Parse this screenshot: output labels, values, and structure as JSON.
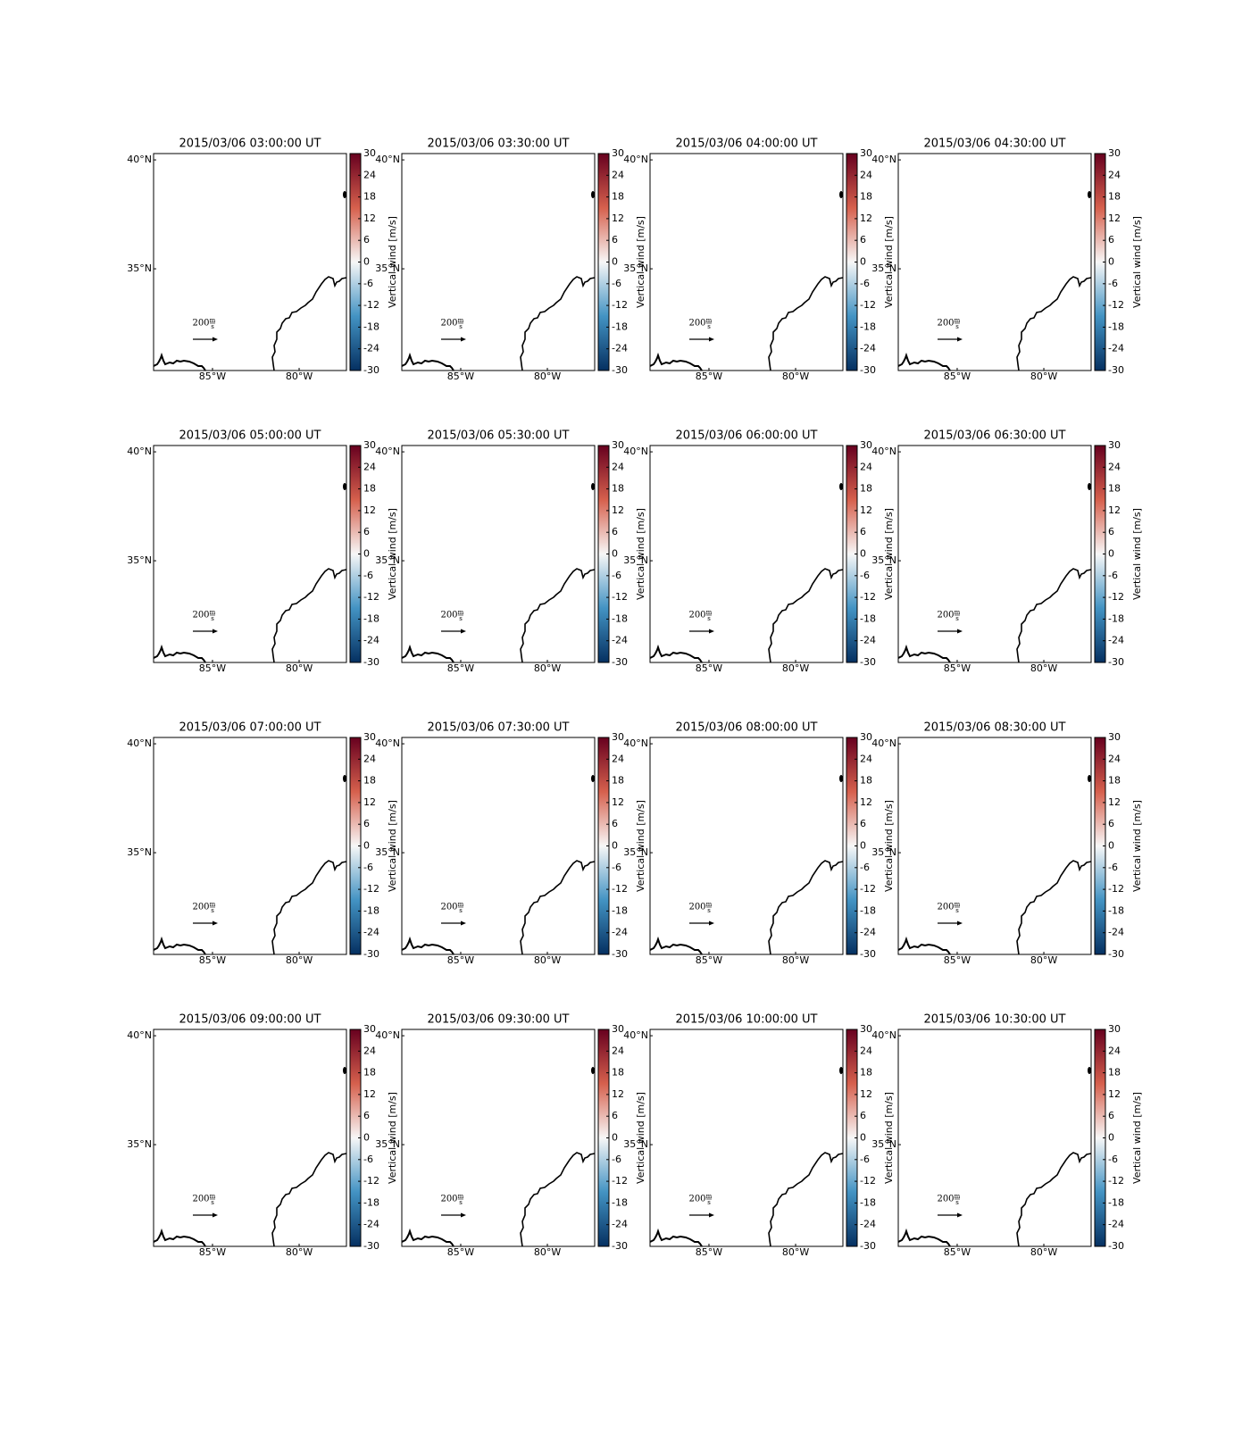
{
  "chart_data": [
    {
      "type": "map",
      "title": "2015/03/06 03:00:00 UT",
      "xlim": [
        -88.4,
        -77.27
      ],
      "ylim": [
        30.33,
        40.29
      ],
      "xticks": [
        {
          "value": -85,
          "label": "85°W"
        },
        {
          "value": -80,
          "label": "80°W"
        }
      ],
      "yticks": [
        {
          "value": 40,
          "label": "40°N"
        },
        {
          "value": 35,
          "label": "35°N"
        }
      ],
      "colorbar": {
        "label": "Vertical wind [m/s]",
        "lim": [
          -30,
          30
        ],
        "ticks": [
          -30,
          -24,
          -18,
          -12,
          -6,
          0,
          6,
          12,
          18,
          24,
          30
        ],
        "colors": [
          "#053061",
          "#4393c3",
          "#f7f7f7",
          "#d6604d",
          "#67001f"
        ]
      },
      "quiver_key": {
        "value": 200,
        "units": [
          "m",
          "s"
        ]
      }
    },
    {
      "type": "map",
      "title": "2015/03/06 03:30:00 UT",
      "xlim": [
        -88.4,
        -77.27
      ],
      "ylim": [
        30.33,
        40.29
      ],
      "xticks": [
        {
          "value": -85,
          "label": "85°W"
        },
        {
          "value": -80,
          "label": "80°W"
        }
      ],
      "yticks": [
        {
          "value": 40,
          "label": "40°N"
        },
        {
          "value": 35,
          "label": "35°N"
        }
      ],
      "colorbar": {
        "label": "Vertical wind [m/s]",
        "lim": [
          -30,
          30
        ],
        "ticks": [
          -30,
          -24,
          -18,
          -12,
          -6,
          0,
          6,
          12,
          18,
          24,
          30
        ],
        "colors": [
          "#053061",
          "#4393c3",
          "#f7f7f7",
          "#d6604d",
          "#67001f"
        ]
      },
      "quiver_key": {
        "value": 200,
        "units": [
          "m",
          "s"
        ]
      }
    },
    {
      "type": "map",
      "title": "2015/03/06 04:00:00 UT",
      "xlim": [
        -88.4,
        -77.27
      ],
      "ylim": [
        30.33,
        40.29
      ],
      "xticks": [
        {
          "value": -85,
          "label": "85°W"
        },
        {
          "value": -80,
          "label": "80°W"
        }
      ],
      "yticks": [
        {
          "value": 40,
          "label": "40°N"
        },
        {
          "value": 35,
          "label": "35°N"
        }
      ],
      "colorbar": {
        "label": "Vertical wind [m/s]",
        "lim": [
          -30,
          30
        ],
        "ticks": [
          -30,
          -24,
          -18,
          -12,
          -6,
          0,
          6,
          12,
          18,
          24,
          30
        ],
        "colors": [
          "#053061",
          "#4393c3",
          "#f7f7f7",
          "#d6604d",
          "#67001f"
        ]
      },
      "quiver_key": {
        "value": 200,
        "units": [
          "m",
          "s"
        ]
      }
    },
    {
      "type": "map",
      "title": "2015/03/06 04:30:00 UT",
      "xlim": [
        -88.4,
        -77.27
      ],
      "ylim": [
        30.33,
        40.29
      ],
      "xticks": [
        {
          "value": -85,
          "label": "85°W"
        },
        {
          "value": -80,
          "label": "80°W"
        }
      ],
      "yticks": [
        {
          "value": 40,
          "label": "40°N"
        },
        {
          "value": 35,
          "label": "35°N"
        }
      ],
      "colorbar": {
        "label": "Vertical wind [m/s]",
        "lim": [
          -30,
          30
        ],
        "ticks": [
          -30,
          -24,
          -18,
          -12,
          -6,
          0,
          6,
          12,
          18,
          24,
          30
        ],
        "colors": [
          "#053061",
          "#4393c3",
          "#f7f7f7",
          "#d6604d",
          "#67001f"
        ]
      },
      "quiver_key": {
        "value": 200,
        "units": [
          "m",
          "s"
        ]
      }
    },
    {
      "type": "map",
      "title": "2015/03/06 05:00:00 UT",
      "xlim": [
        -88.4,
        -77.27
      ],
      "ylim": [
        30.33,
        40.29
      ],
      "xticks": [
        {
          "value": -85,
          "label": "85°W"
        },
        {
          "value": -80,
          "label": "80°W"
        }
      ],
      "yticks": [
        {
          "value": 40,
          "label": "40°N"
        },
        {
          "value": 35,
          "label": "35°N"
        }
      ],
      "colorbar": {
        "label": "Vertical wind [m/s]",
        "lim": [
          -30,
          30
        ],
        "ticks": [
          -30,
          -24,
          -18,
          -12,
          -6,
          0,
          6,
          12,
          18,
          24,
          30
        ],
        "colors": [
          "#053061",
          "#4393c3",
          "#f7f7f7",
          "#d6604d",
          "#67001f"
        ]
      },
      "quiver_key": {
        "value": 200,
        "units": [
          "m",
          "s"
        ]
      }
    },
    {
      "type": "map",
      "title": "2015/03/06 05:30:00 UT",
      "xlim": [
        -88.4,
        -77.27
      ],
      "ylim": [
        30.33,
        40.29
      ],
      "xticks": [
        {
          "value": -85,
          "label": "85°W"
        },
        {
          "value": -80,
          "label": "80°W"
        }
      ],
      "yticks": [
        {
          "value": 40,
          "label": "40°N"
        },
        {
          "value": 35,
          "label": "35°N"
        }
      ],
      "colorbar": {
        "label": "Vertical wind [m/s]",
        "lim": [
          -30,
          30
        ],
        "ticks": [
          -30,
          -24,
          -18,
          -12,
          -6,
          0,
          6,
          12,
          18,
          24,
          30
        ],
        "colors": [
          "#053061",
          "#4393c3",
          "#f7f7f7",
          "#d6604d",
          "#67001f"
        ]
      },
      "quiver_key": {
        "value": 200,
        "units": [
          "m",
          "s"
        ]
      }
    },
    {
      "type": "map",
      "title": "2015/03/06 06:00:00 UT",
      "xlim": [
        -88.4,
        -77.27
      ],
      "ylim": [
        30.33,
        40.29
      ],
      "xticks": [
        {
          "value": -85,
          "label": "85°W"
        },
        {
          "value": -80,
          "label": "80°W"
        }
      ],
      "yticks": [
        {
          "value": 40,
          "label": "40°N"
        },
        {
          "value": 35,
          "label": "35°N"
        }
      ],
      "colorbar": {
        "label": "Vertical wind [m/s]",
        "lim": [
          -30,
          30
        ],
        "ticks": [
          -30,
          -24,
          -18,
          -12,
          -6,
          0,
          6,
          12,
          18,
          24,
          30
        ],
        "colors": [
          "#053061",
          "#4393c3",
          "#f7f7f7",
          "#d6604d",
          "#67001f"
        ]
      },
      "quiver_key": {
        "value": 200,
        "units": [
          "m",
          "s"
        ]
      }
    },
    {
      "type": "map",
      "title": "2015/03/06 06:30:00 UT",
      "xlim": [
        -88.4,
        -77.27
      ],
      "ylim": [
        30.33,
        40.29
      ],
      "xticks": [
        {
          "value": -85,
          "label": "85°W"
        },
        {
          "value": -80,
          "label": "80°W"
        }
      ],
      "yticks": [
        {
          "value": 40,
          "label": "40°N"
        },
        {
          "value": 35,
          "label": "35°N"
        }
      ],
      "colorbar": {
        "label": "Vertical wind [m/s]",
        "lim": [
          -30,
          30
        ],
        "ticks": [
          -30,
          -24,
          -18,
          -12,
          -6,
          0,
          6,
          12,
          18,
          24,
          30
        ],
        "colors": [
          "#053061",
          "#4393c3",
          "#f7f7f7",
          "#d6604d",
          "#67001f"
        ]
      },
      "quiver_key": {
        "value": 200,
        "units": [
          "m",
          "s"
        ]
      }
    },
    {
      "type": "map",
      "title": "2015/03/06 07:00:00 UT",
      "xlim": [
        -88.4,
        -77.27
      ],
      "ylim": [
        30.33,
        40.29
      ],
      "xticks": [
        {
          "value": -85,
          "label": "85°W"
        },
        {
          "value": -80,
          "label": "80°W"
        }
      ],
      "yticks": [
        {
          "value": 40,
          "label": "40°N"
        },
        {
          "value": 35,
          "label": "35°N"
        }
      ],
      "colorbar": {
        "label": "Vertical wind [m/s]",
        "lim": [
          -30,
          30
        ],
        "ticks": [
          -30,
          -24,
          -18,
          -12,
          -6,
          0,
          6,
          12,
          18,
          24,
          30
        ],
        "colors": [
          "#053061",
          "#4393c3",
          "#f7f7f7",
          "#d6604d",
          "#67001f"
        ]
      },
      "quiver_key": {
        "value": 200,
        "units": [
          "m",
          "s"
        ]
      }
    },
    {
      "type": "map",
      "title": "2015/03/06 07:30:00 UT",
      "xlim": [
        -88.4,
        -77.27
      ],
      "ylim": [
        30.33,
        40.29
      ],
      "xticks": [
        {
          "value": -85,
          "label": "85°W"
        },
        {
          "value": -80,
          "label": "80°W"
        }
      ],
      "yticks": [
        {
          "value": 40,
          "label": "40°N"
        },
        {
          "value": 35,
          "label": "35°N"
        }
      ],
      "colorbar": {
        "label": "Vertical wind [m/s]",
        "lim": [
          -30,
          30
        ],
        "ticks": [
          -30,
          -24,
          -18,
          -12,
          -6,
          0,
          6,
          12,
          18,
          24,
          30
        ],
        "colors": [
          "#053061",
          "#4393c3",
          "#f7f7f7",
          "#d6604d",
          "#67001f"
        ]
      },
      "quiver_key": {
        "value": 200,
        "units": [
          "m",
          "s"
        ]
      }
    },
    {
      "type": "map",
      "title": "2015/03/06 08:00:00 UT",
      "xlim": [
        -88.4,
        -77.27
      ],
      "ylim": [
        30.33,
        40.29
      ],
      "xticks": [
        {
          "value": -85,
          "label": "85°W"
        },
        {
          "value": -80,
          "label": "80°W"
        }
      ],
      "yticks": [
        {
          "value": 40,
          "label": "40°N"
        },
        {
          "value": 35,
          "label": "35°N"
        }
      ],
      "colorbar": {
        "label": "Vertical wind [m/s]",
        "lim": [
          -30,
          30
        ],
        "ticks": [
          -30,
          -24,
          -18,
          -12,
          -6,
          0,
          6,
          12,
          18,
          24,
          30
        ],
        "colors": [
          "#053061",
          "#4393c3",
          "#f7f7f7",
          "#d6604d",
          "#67001f"
        ]
      },
      "quiver_key": {
        "value": 200,
        "units": [
          "m",
          "s"
        ]
      }
    },
    {
      "type": "map",
      "title": "2015/03/06 08:30:00 UT",
      "xlim": [
        -88.4,
        -77.27
      ],
      "ylim": [
        30.33,
        40.29
      ],
      "xticks": [
        {
          "value": -85,
          "label": "85°W"
        },
        {
          "value": -80,
          "label": "80°W"
        }
      ],
      "yticks": [
        {
          "value": 40,
          "label": "40°N"
        },
        {
          "value": 35,
          "label": "35°N"
        }
      ],
      "colorbar": {
        "label": "Vertical wind [m/s]",
        "lim": [
          -30,
          30
        ],
        "ticks": [
          -30,
          -24,
          -18,
          -12,
          -6,
          0,
          6,
          12,
          18,
          24,
          30
        ],
        "colors": [
          "#053061",
          "#4393c3",
          "#f7f7f7",
          "#d6604d",
          "#67001f"
        ]
      },
      "quiver_key": {
        "value": 200,
        "units": [
          "m",
          "s"
        ]
      }
    },
    {
      "type": "map",
      "title": "2015/03/06 09:00:00 UT",
      "xlim": [
        -88.4,
        -77.27
      ],
      "ylim": [
        30.33,
        40.29
      ],
      "xticks": [
        {
          "value": -85,
          "label": "85°W"
        },
        {
          "value": -80,
          "label": "80°W"
        }
      ],
      "yticks": [
        {
          "value": 40,
          "label": "40°N"
        },
        {
          "value": 35,
          "label": "35°N"
        }
      ],
      "colorbar": {
        "label": "Vertical wind [m/s]",
        "lim": [
          -30,
          30
        ],
        "ticks": [
          -30,
          -24,
          -18,
          -12,
          -6,
          0,
          6,
          12,
          18,
          24,
          30
        ],
        "colors": [
          "#053061",
          "#4393c3",
          "#f7f7f7",
          "#d6604d",
          "#67001f"
        ]
      },
      "quiver_key": {
        "value": 200,
        "units": [
          "m",
          "s"
        ]
      }
    },
    {
      "type": "map",
      "title": "2015/03/06 09:30:00 UT",
      "xlim": [
        -88.4,
        -77.27
      ],
      "ylim": [
        30.33,
        40.29
      ],
      "xticks": [
        {
          "value": -85,
          "label": "85°W"
        },
        {
          "value": -80,
          "label": "80°W"
        }
      ],
      "yticks": [
        {
          "value": 40,
          "label": "40°N"
        },
        {
          "value": 35,
          "label": "35°N"
        }
      ],
      "colorbar": {
        "label": "Vertical wind [m/s]",
        "lim": [
          -30,
          30
        ],
        "ticks": [
          -30,
          -24,
          -18,
          -12,
          -6,
          0,
          6,
          12,
          18,
          24,
          30
        ],
        "colors": [
          "#053061",
          "#4393c3",
          "#f7f7f7",
          "#d6604d",
          "#67001f"
        ]
      },
      "quiver_key": {
        "value": 200,
        "units": [
          "m",
          "s"
        ]
      }
    },
    {
      "type": "map",
      "title": "2015/03/06 10:00:00 UT",
      "xlim": [
        -88.4,
        -77.27
      ],
      "ylim": [
        30.33,
        40.29
      ],
      "xticks": [
        {
          "value": -85,
          "label": "85°W"
        },
        {
          "value": -80,
          "label": "80°W"
        }
      ],
      "yticks": [
        {
          "value": 40,
          "label": "40°N"
        },
        {
          "value": 35,
          "label": "35°N"
        }
      ],
      "colorbar": {
        "label": "Vertical wind [m/s]",
        "lim": [
          -30,
          30
        ],
        "ticks": [
          -30,
          -24,
          -18,
          -12,
          -6,
          0,
          6,
          12,
          18,
          24,
          30
        ],
        "colors": [
          "#053061",
          "#4393c3",
          "#f7f7f7",
          "#d6604d",
          "#67001f"
        ]
      },
      "quiver_key": {
        "value": 200,
        "units": [
          "m",
          "s"
        ]
      }
    },
    {
      "type": "map",
      "title": "2015/03/06 10:30:00 UT",
      "xlim": [
        -88.4,
        -77.27
      ],
      "ylim": [
        30.33,
        40.29
      ],
      "xticks": [
        {
          "value": -85,
          "label": "85°W"
        },
        {
          "value": -80,
          "label": "80°W"
        }
      ],
      "yticks": [
        {
          "value": 40,
          "label": "40°N"
        },
        {
          "value": 35,
          "label": "35°N"
        }
      ],
      "colorbar": {
        "label": "Vertical wind [m/s]",
        "lim": [
          -30,
          30
        ],
        "ticks": [
          -30,
          -24,
          -18,
          -12,
          -6,
          0,
          6,
          12,
          18,
          24,
          30
        ],
        "colors": [
          "#053061",
          "#4393c3",
          "#f7f7f7",
          "#d6604d",
          "#67001f"
        ]
      },
      "quiver_key": {
        "value": 200,
        "units": [
          "m",
          "s"
        ]
      }
    }
  ]
}
